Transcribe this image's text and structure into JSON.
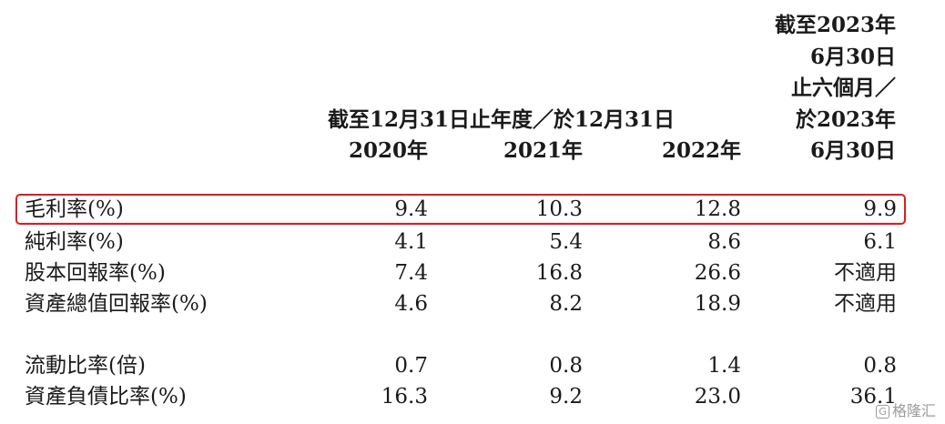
{
  "header": {
    "period_span": "截至12月31日止年度／於12月31日",
    "years": [
      "2020年",
      "2021年",
      "2022年"
    ],
    "last_col": [
      "截至2023年",
      "6月30日",
      "止六個月／",
      "於2023年",
      "6月30日"
    ]
  },
  "rows": [
    {
      "label": "毛利率(%)",
      "values": [
        "9.4",
        "10.3",
        "12.8",
        "9.9"
      ]
    },
    {
      "label": "純利率(%)",
      "values": [
        "4.1",
        "5.4",
        "8.6",
        "6.1"
      ]
    },
    {
      "label": "股本回報率(%)",
      "values": [
        "7.4",
        "16.8",
        "26.6",
        "不適用"
      ]
    },
    {
      "label": "資產總值回報率(%)",
      "values": [
        "4.6",
        "8.2",
        "18.9",
        "不適用"
      ]
    },
    {
      "label": "流動比率(倍)",
      "values": [
        "0.7",
        "0.8",
        "1.4",
        "0.8"
      ]
    },
    {
      "label": "資產負債比率(%)",
      "values": [
        "16.3",
        "9.2",
        "23.0",
        "36.1"
      ]
    }
  ],
  "watermark": {
    "icon": "G",
    "text": "格隆汇"
  },
  "highlight_color": "#e0191e"
}
